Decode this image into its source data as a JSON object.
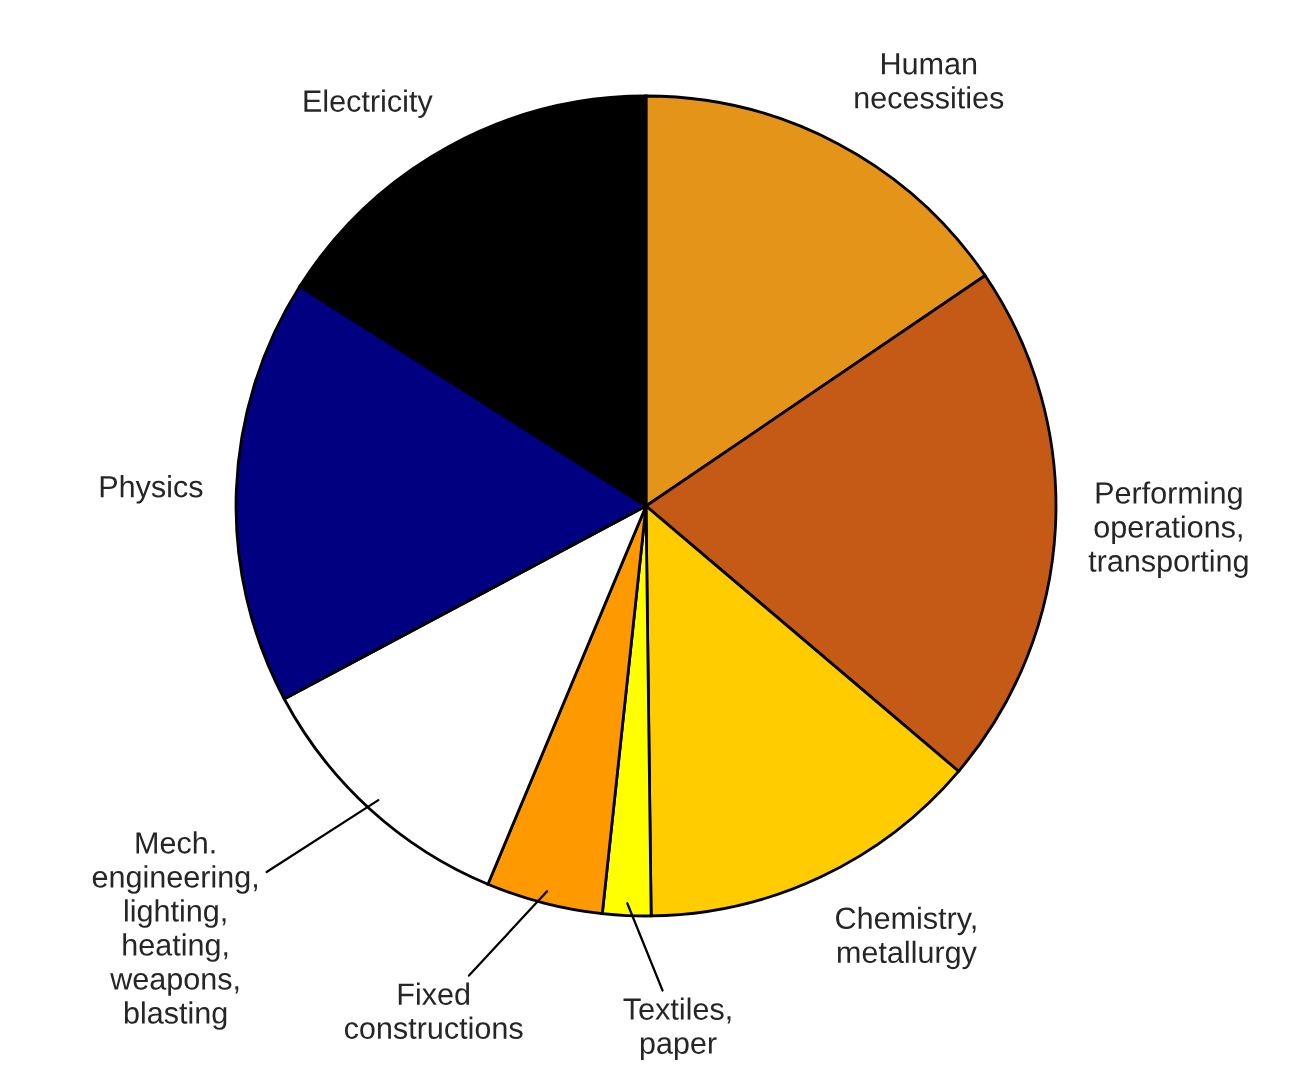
{
  "chart_data": {
    "type": "pie",
    "categories": [
      "Human\nnecessities",
      "Performing\noperations,\ntransporting",
      "Chemistry,\nmetallurgy",
      "Textiles,\npaper",
      "Fixed\nconstructions",
      "Mech.\nengineering,\nlighting,\nheating,\nweapons,\nblasting",
      "Physics",
      "Electricity"
    ],
    "values": [
      15.5,
      20.7,
      13.6,
      1.9,
      4.6,
      10.9,
      16.8,
      16.0
    ],
    "colors": [
      "#e5941a",
      "#c55a17",
      "#ffcc00",
      "#ffff00",
      "#ff9900",
      "#ffffff",
      "#000080",
      "#000000"
    ]
  }
}
